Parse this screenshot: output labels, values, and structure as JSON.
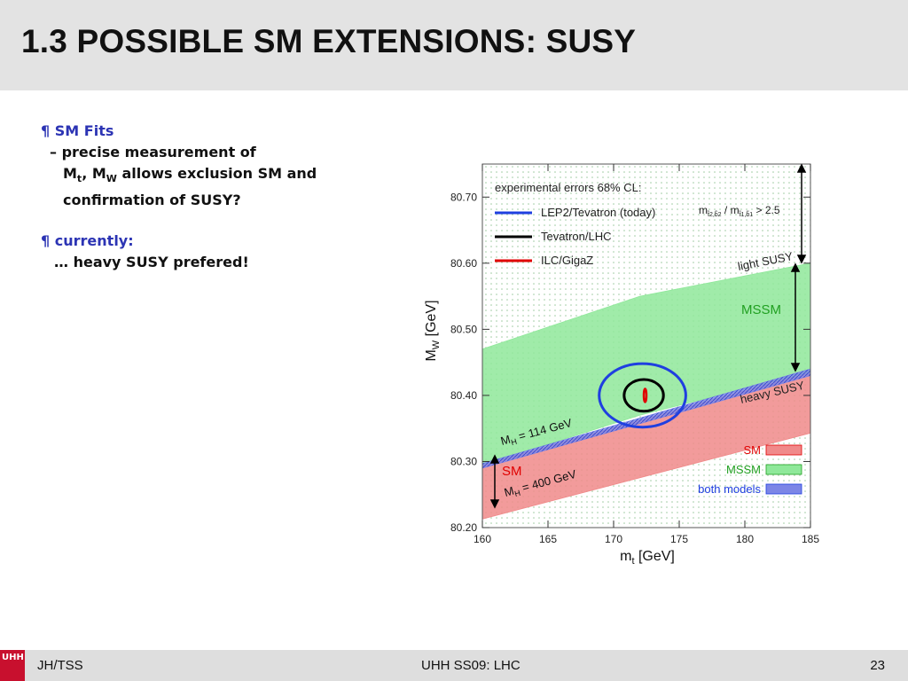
{
  "slide": {
    "title": "1.3 POSSIBLE SM EXTENSIONS: SUSY",
    "bullet_marker": "¶",
    "bullet1": {
      "head": "SM Fits",
      "line1": "– precise measurement of",
      "m": "M",
      "t_sub": "t",
      "comma": ", M",
      "w_sub": "W",
      "line2_rest": " allows exclusion SM and",
      "line3": "confirmation of  SUSY?"
    },
    "bullet2": {
      "head": "currently:",
      "line1": "… heavy SUSY prefered!"
    }
  },
  "footer": {
    "logo": "UHH",
    "left": "JH/TSS",
    "center": "UHH SS09: LHC",
    "page": "23"
  },
  "chart_data": {
    "type": "area",
    "xlabel_main": "m",
    "xlabel_sub": "t",
    "xlabel_unit": " [GeV]",
    "ylabel_main": "M",
    "ylabel_sub": "W",
    "ylabel_unit": " [GeV]",
    "xlim": [
      160,
      185
    ],
    "ylim": [
      80.2,
      80.75
    ],
    "xticks": [
      160,
      165,
      170,
      175,
      180,
      185
    ],
    "yticks": [
      80.2,
      80.3,
      80.4,
      80.5,
      80.6,
      80.7
    ],
    "ytick_labels": [
      "80.20",
      "80.30",
      "80.40",
      "80.50",
      "80.60",
      "80.70"
    ],
    "bands": [
      {
        "name": "SM",
        "x": [
          160,
          185
        ],
        "lower": [
          80.213,
          80.343
        ],
        "upper": [
          80.295,
          80.435
        ],
        "color": "#f08a8a"
      },
      {
        "name": "MSSM",
        "x": [
          160,
          172,
          185
        ],
        "lower": [
          80.295,
          80.37,
          80.435
        ],
        "upper": [
          80.47,
          80.55,
          80.6
        ],
        "color": "#8fe89a"
      },
      {
        "name": "both models",
        "x": [
          160,
          185
        ],
        "lower": [
          80.29,
          80.43
        ],
        "upper": [
          80.297,
          80.44
        ],
        "color": "#7c86e6"
      }
    ],
    "ellipses": [
      {
        "name": "LEP2/Tevatron (today)",
        "cx": 172.2,
        "cy": 80.4,
        "rx": 3.3,
        "ry": 0.048,
        "color": "#1f3fe0"
      },
      {
        "name": "Tevatron/LHC",
        "cx": 172.3,
        "cy": 80.4,
        "rx": 1.5,
        "ry": 0.024,
        "color": "#000000"
      },
      {
        "name": "ILC/GigaZ",
        "cx": 172.4,
        "cy": 80.4,
        "rx": 0.1,
        "ry": 0.01,
        "color": "#e00000"
      }
    ],
    "legend_title": "experimental errors 68% CL:",
    "legend": [
      {
        "label": "LEP2/Tevatron (today)",
        "color": "#1f3fe0"
      },
      {
        "label": "Tevatron/LHC",
        "color": "#000000"
      },
      {
        "label": "ILC/GigaZ",
        "color": "#e00000"
      }
    ],
    "band_legend": [
      {
        "label": "SM",
        "color": "#e00000",
        "fill": "#f08a8a"
      },
      {
        "label": "MSSM",
        "color": "#21a021",
        "fill": "#8fe89a"
      },
      {
        "label": "both models",
        "color": "#1f3fe0",
        "fill": "#7c86e6"
      }
    ],
    "annotations": {
      "ratio_a": "m",
      "ratio_a_sub": "t̃2,b̃2",
      "ratio_b": " / m",
      "ratio_b_sub": "t̃1,b̃1",
      "ratio_c": " > 2.5",
      "light_susy": "light SUSY",
      "heavy_susy": "heavy SUSY",
      "mssm": "MSSM",
      "sm": "SM",
      "mh114_main": "M",
      "mh114_sub": "H",
      "mh114_rest": " = 114 GeV",
      "mh400_main": "M",
      "mh400_sub": "H",
      "mh400_rest": " = 400 GeV"
    }
  }
}
